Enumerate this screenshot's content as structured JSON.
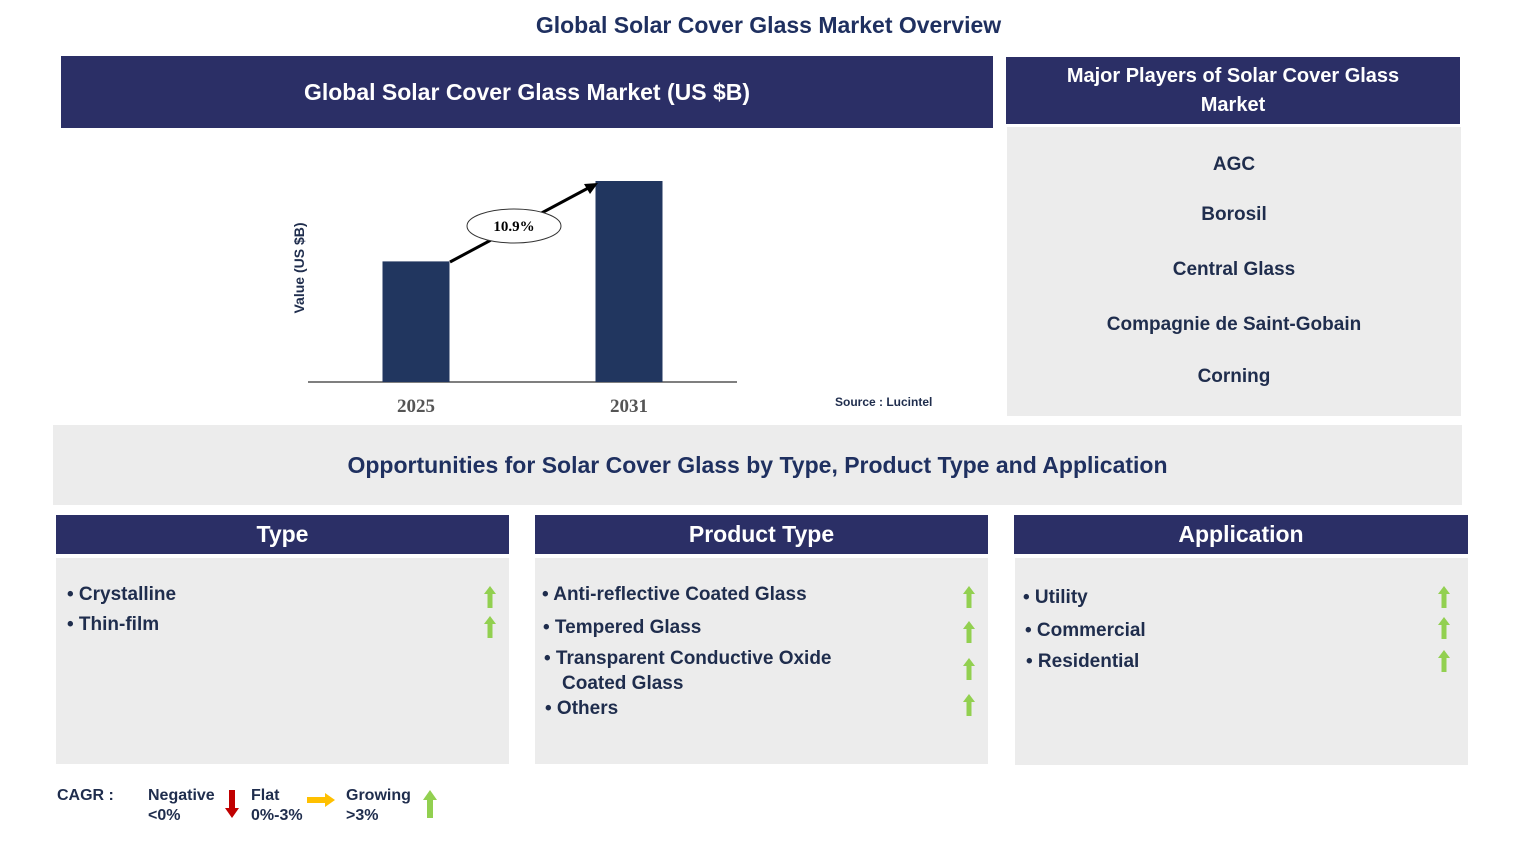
{
  "title": "Global Solar Cover Glass Market Overview",
  "market_panel": {
    "header": "Global Solar Cover Glass Market (US $B)",
    "source": "Source : Lucintel"
  },
  "chart_data": {
    "type": "bar",
    "categories": [
      "2025",
      "2031"
    ],
    "values": [
      0.6,
      1.0
    ],
    "ylabel": "Value (US $B)",
    "xlabel": "",
    "ylim": [
      0,
      1
    ],
    "annotation": "10.9%",
    "grid": false,
    "bar_color": "#21365f"
  },
  "players": {
    "header": "Major Players of Solar Cover Glass Market",
    "items": [
      "AGC",
      "Borosil",
      "Central Glass",
      "Compagnie de Saint-Gobain",
      "Corning"
    ]
  },
  "opportunities": {
    "title": "Opportunities for Solar Cover Glass by Type, Product Type and Application",
    "columns": [
      {
        "header": "Type",
        "items": [
          "• Crystalline",
          "• Thin-film"
        ]
      },
      {
        "header": "Product Type",
        "items": [
          "• Anti-reflective  Coated Glass",
          "• Tempered Glass",
          "• Transparent Conductive Oxide",
          "Coated Glass",
          "• Others"
        ]
      },
      {
        "header": "Application",
        "items": [
          "• Utility",
          "• Commercial",
          "• Residential"
        ]
      }
    ]
  },
  "legend": {
    "label": "CAGR  :",
    "negative": {
      "name": "Negative",
      "range": "<0%"
    },
    "flat": {
      "name": "Flat",
      "range": "0%-3%"
    },
    "growing": {
      "name": "Growing",
      "range": ">3%"
    }
  },
  "colors": {
    "navy": "#2b2f66",
    "panel": "#ececec",
    "up": "#92d050",
    "down": "#c00000",
    "flat": "#ffc000"
  }
}
